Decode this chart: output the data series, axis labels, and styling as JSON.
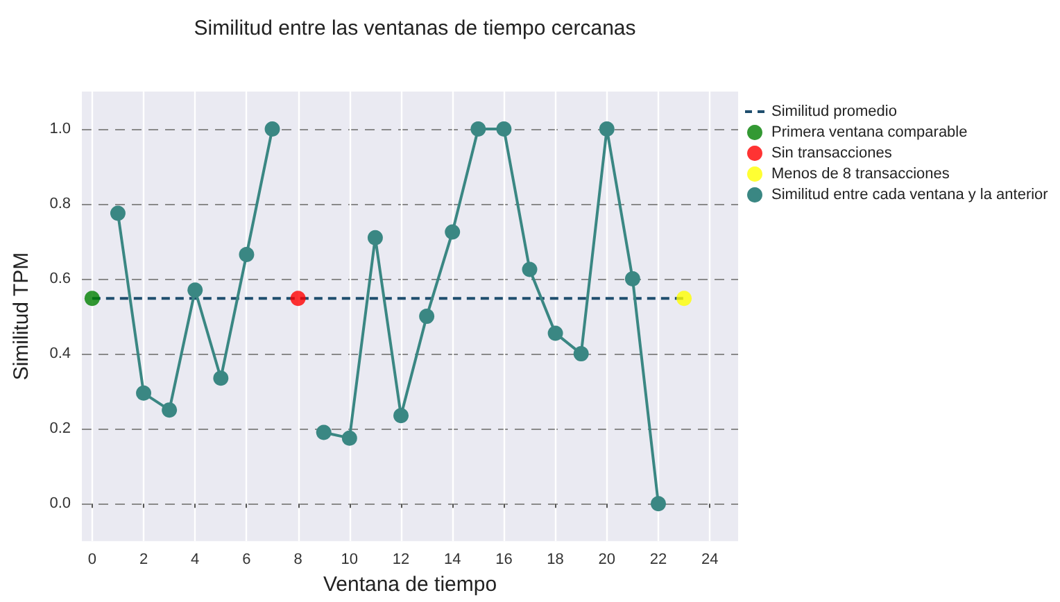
{
  "chart_data": {
    "type": "line",
    "title": "Similitud entre las ventanas de tiempo cercanas",
    "xlabel": "Ventana de tiempo",
    "ylabel": "Similitud TPM",
    "xlim": [
      -0.4,
      25.1
    ],
    "xticks": [
      0,
      2,
      4,
      6,
      8,
      10,
      12,
      14,
      16,
      18,
      20,
      22,
      24
    ],
    "ylim": [
      -0.1,
      1.1
    ],
    "yticks": [
      {
        "value": 0,
        "label": "0.0"
      },
      {
        "value": 0.2,
        "label": "0.2"
      },
      {
        "value": 0.4,
        "label": "0.4"
      },
      {
        "value": 0.6,
        "label": "0.6"
      },
      {
        "value": 0.8,
        "label": "0.8"
      },
      {
        "value": 1,
        "label": "1.0"
      }
    ],
    "grid": true,
    "legend": "right",
    "series": [
      {
        "name": "Similitud promedio",
        "color": "#1f4e6e",
        "line_style": "dashed",
        "marker": "none",
        "x": [
          0,
          23
        ],
        "values": [
          0.548,
          0.548
        ]
      },
      {
        "name": "Primera ventana comparable",
        "type": "scatter",
        "color": "#008000",
        "marker": "circle",
        "x": [
          0
        ],
        "values": [
          0.548
        ]
      },
      {
        "name": "Sin transacciones",
        "type": "scatter",
        "color": "#ff0000",
        "marker": "circle",
        "x": [
          8
        ],
        "values": [
          0.548
        ]
      },
      {
        "name": "Menos de 8 transacciones",
        "type": "scatter",
        "color": "#ffff00",
        "marker": "circle",
        "x": [
          23
        ],
        "values": [
          0.548
        ]
      },
      {
        "name": "Similitud entre cada ventana y la anterior",
        "color": "#3a8783",
        "line_style": "solid",
        "marker": "circle",
        "x": [
          1,
          2,
          3,
          4,
          5,
          6,
          7,
          8,
          9,
          10,
          11,
          12,
          13,
          14,
          15,
          16,
          17,
          18,
          19,
          20,
          21,
          22
        ],
        "values": [
          0.775,
          0.295,
          0.25,
          0.57,
          0.335,
          0.665,
          1.0,
          null,
          0.19,
          0.175,
          0.71,
          0.235,
          0.5,
          0.725,
          1.0,
          1.0,
          0.625,
          0.455,
          0.4,
          1.0,
          0.6,
          0.0
        ]
      }
    ]
  }
}
